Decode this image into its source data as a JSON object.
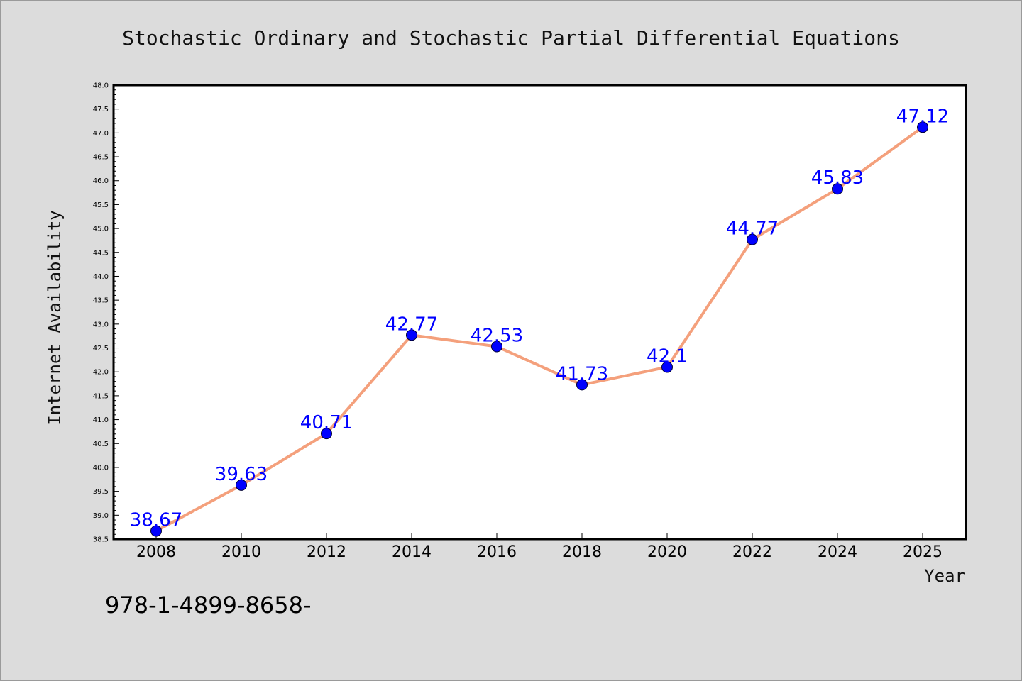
{
  "chart_data": {
    "type": "line",
    "title": "Stochastic Ordinary and Stochastic Partial Differential Equations",
    "xlabel": "Year",
    "ylabel": "Internet Availability",
    "categories": [
      "2008",
      "2010",
      "2012",
      "2014",
      "2016",
      "2018",
      "2020",
      "2022",
      "2024",
      "2025"
    ],
    "series": [
      {
        "values": [
          38.67,
          39.63,
          40.71,
          42.77,
          42.53,
          41.73,
          42.1,
          44.77,
          45.83,
          47.12
        ],
        "data_labels": [
          "38.67",
          "39.63",
          "40.71",
          "42.77",
          "42.53",
          "41.73",
          "42.1",
          "44.77",
          "45.83",
          "47.12"
        ],
        "line_color": "#f4a07c",
        "marker_color": "#0000ff"
      }
    ],
    "ylim": [
      38.5,
      48.0
    ],
    "yticks": [
      "38.5",
      "39.0",
      "39.5",
      "40.0",
      "40.5",
      "41.0",
      "41.5",
      "42.0",
      "42.5",
      "43.0",
      "43.5",
      "44.0",
      "44.5",
      "45.0",
      "45.5",
      "46.0",
      "46.5",
      "47.0",
      "47.5",
      "48.0"
    ],
    "grid": false,
    "legend": "none"
  },
  "footer": {
    "isbn": "978-1-4899-8658-"
  },
  "colors": {
    "background": "#dcdcdc",
    "plot_background": "#ffffff",
    "label_color": "#0000ff"
  }
}
